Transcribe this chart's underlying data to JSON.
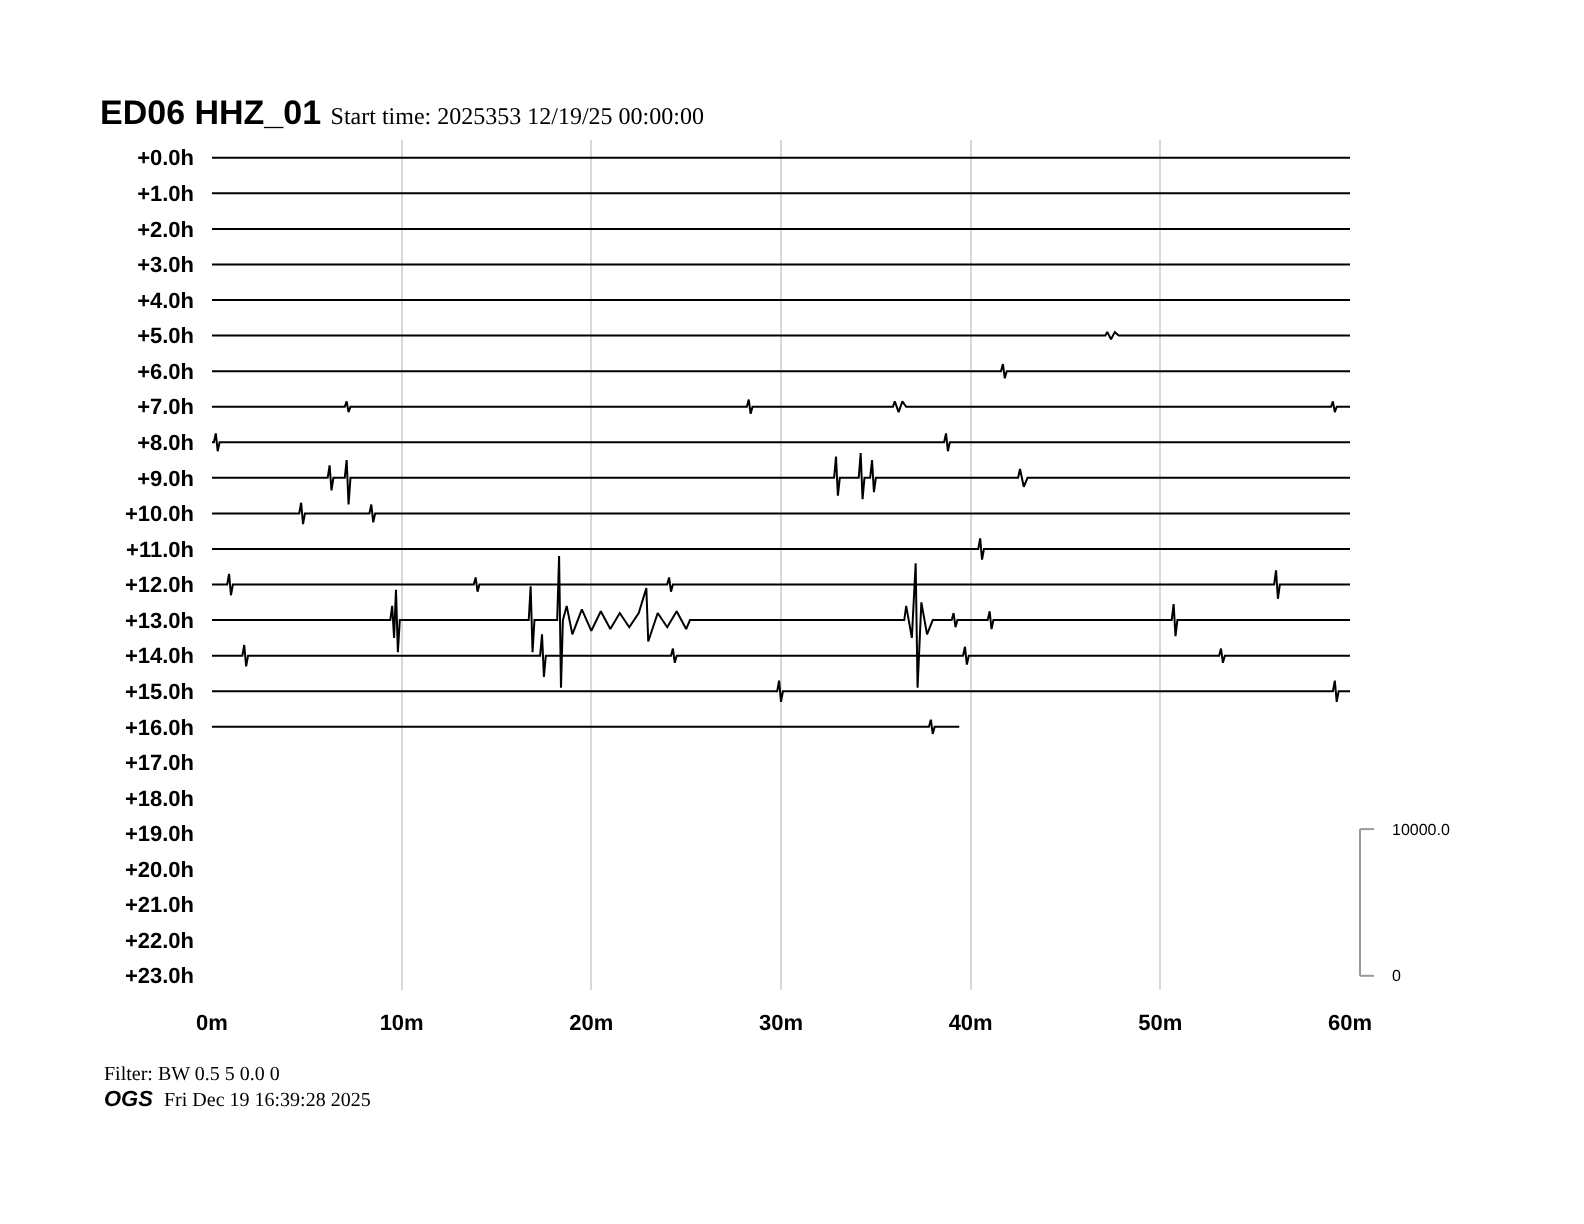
{
  "chart_data": {
    "type": "line",
    "title": "ED06 HHZ_01",
    "subtitle": "Start time: 2025353 12/19/25 00:00:00",
    "annotations": [
      "Filter: BW 0.5 5 0.0 0",
      "OGS",
      "Fri Dec 19 16:39:28 2025"
    ],
    "xlim": [
      0,
      60
    ],
    "xticks": [
      {
        "value": 0,
        "label": "0m"
      },
      {
        "value": 10,
        "label": "10m"
      },
      {
        "value": 20,
        "label": "20m"
      },
      {
        "value": 30,
        "label": "30m"
      },
      {
        "value": 40,
        "label": "40m"
      },
      {
        "value": 50,
        "label": "50m"
      },
      {
        "value": 60,
        "label": "60m"
      }
    ],
    "ylim": [
      23.4,
      -0.5
    ],
    "yticks": [
      {
        "value": 0,
        "label": "+0.0h"
      },
      {
        "value": 1,
        "label": "+1.0h"
      },
      {
        "value": 2,
        "label": "+2.0h"
      },
      {
        "value": 3,
        "label": "+3.0h"
      },
      {
        "value": 4,
        "label": "+4.0h"
      },
      {
        "value": 5,
        "label": "+5.0h"
      },
      {
        "value": 6,
        "label": "+6.0h"
      },
      {
        "value": 7,
        "label": "+7.0h"
      },
      {
        "value": 8,
        "label": "+8.0h"
      },
      {
        "value": 9,
        "label": "+9.0h"
      },
      {
        "value": 10,
        "label": "+10.0h"
      },
      {
        "value": 11,
        "label": "+11.0h"
      },
      {
        "value": 12,
        "label": "+12.0h"
      },
      {
        "value": 13,
        "label": "+13.0h"
      },
      {
        "value": 14,
        "label": "+14.0h"
      },
      {
        "value": 15,
        "label": "+15.0h"
      },
      {
        "value": 16,
        "label": "+16.0h"
      },
      {
        "value": 17,
        "label": "+17.0h"
      },
      {
        "value": 18,
        "label": "+18.0h"
      },
      {
        "value": 19,
        "label": "+19.0h"
      },
      {
        "value": 20,
        "label": "+20.0h"
      },
      {
        "value": 21,
        "label": "+21.0h"
      },
      {
        "value": 22,
        "label": "+22.0h"
      },
      {
        "value": 23,
        "label": "+23.0h"
      }
    ],
    "y2lim": [
      -970,
      56990
    ],
    "y2ticks": [
      0,
      {
        "value": 10000,
        "label": "10000.0"
      }
    ],
    "grid": "x",
    "marker": "none",
    "line_style": "solid",
    "series": [
      {
        "color": "#000000",
        "x": [
          0,
          60
        ],
        "values": [
          0,
          0
        ]
      },
      {
        "color": "#000000",
        "x": [
          0,
          60
        ],
        "values": [
          1,
          1
        ]
      },
      {
        "color": "#000000",
        "x": [
          0,
          60
        ],
        "values": [
          2,
          2
        ]
      },
      {
        "color": "#000000",
        "x": [
          0,
          60
        ],
        "values": [
          3,
          3
        ]
      },
      {
        "color": "#000000",
        "x": [
          0,
          60
        ],
        "values": [
          4,
          4
        ]
      },
      {
        "color": "#000000",
        "x": [
          0,
          47.1,
          47.2,
          47.4,
          47.6,
          47.8,
          60
        ],
        "values": [
          5,
          5,
          4.9,
          5.1,
          4.9,
          5,
          5
        ]
      },
      {
        "color": "#000000",
        "x": [
          0,
          41.6,
          41.7,
          41.8,
          41.9,
          60
        ],
        "values": [
          6,
          6,
          5.8,
          6.2,
          6,
          6
        ]
      },
      {
        "color": "#000000",
        "x": [
          0,
          7.0,
          7.1,
          7.2,
          7.3,
          28.2,
          28.3,
          28.4,
          28.5,
          35.9,
          36.0,
          36.2,
          36.4,
          36.6,
          59.0,
          59.1,
          59.2,
          59.3,
          60
        ],
        "values": [
          7,
          7,
          6.85,
          7.15,
          7,
          7,
          6.8,
          7.2,
          7,
          7,
          6.85,
          7.15,
          6.85,
          7,
          7,
          6.85,
          7.15,
          7,
          7
        ]
      },
      {
        "color": "#000000",
        "x": [
          0,
          0.1,
          0.2,
          0.3,
          0.4,
          38.6,
          38.7,
          38.8,
          38.9,
          60
        ],
        "values": [
          8,
          8,
          7.75,
          8.25,
          8,
          8,
          7.75,
          8.25,
          8,
          8
        ]
      },
      {
        "color": "#000000",
        "x": [
          0,
          6.1,
          6.2,
          6.3,
          6.4,
          7.0,
          7.1,
          7.2,
          7.3,
          32.8,
          32.9,
          33.0,
          33.1,
          34.1,
          34.2,
          34.3,
          34.4,
          34.7,
          34.8,
          34.9,
          35.0,
          42.5,
          42.6,
          42.8,
          43.0,
          60
        ],
        "values": [
          9,
          9,
          8.65,
          9.35,
          9,
          9,
          8.5,
          9.75,
          9,
          9,
          8.4,
          9.5,
          9,
          9,
          8.3,
          9.6,
          9,
          9,
          8.5,
          9.4,
          9,
          9,
          8.75,
          9.25,
          9,
          9
        ]
      },
      {
        "color": "#000000",
        "x": [
          0,
          4.6,
          4.7,
          4.8,
          4.9,
          8.3,
          8.4,
          8.5,
          8.6,
          60
        ],
        "values": [
          10,
          10,
          9.7,
          10.3,
          10,
          10,
          9.75,
          10.25,
          10,
          10
        ]
      },
      {
        "color": "#000000",
        "x": [
          0,
          40.4,
          40.5,
          40.6,
          40.7,
          60
        ],
        "values": [
          11,
          11,
          10.7,
          11.3,
          11,
          11
        ]
      },
      {
        "color": "#000000",
        "x": [
          0,
          0.8,
          0.9,
          1.0,
          1.1,
          13.8,
          13.9,
          14.0,
          14.1,
          24.0,
          24.1,
          24.2,
          24.3,
          56.0,
          56.1,
          56.2,
          56.3,
          60
        ],
        "values": [
          12,
          12,
          11.7,
          12.3,
          12,
          12,
          11.8,
          12.2,
          12,
          12,
          11.8,
          12.2,
          12,
          12,
          11.6,
          12.4,
          12,
          12
        ]
      },
      {
        "color": "#000000",
        "x": [
          0,
          9.4,
          9.5,
          9.6,
          9.7,
          9.8,
          9.9,
          16.7,
          16.8,
          16.9,
          17.0,
          18.2,
          18.3,
          18.4,
          18.5,
          18.7,
          19.0,
          19.5,
          20.0,
          20.5,
          21.0,
          21.5,
          22.0,
          22.5,
          22.9,
          23.0,
          23.5,
          24.0,
          24.5,
          25.0,
          25.2,
          36.5,
          36.6,
          36.9,
          37.1,
          37.2,
          37.4,
          37.7,
          38.0,
          39.0,
          39.1,
          39.2,
          39.3,
          40.9,
          41.0,
          41.1,
          41.2,
          50.6,
          50.7,
          50.8,
          50.9,
          60
        ],
        "values": [
          13,
          13,
          12.6,
          13.5,
          12.15,
          13.9,
          13,
          13,
          12.05,
          13.9,
          13,
          13,
          11.2,
          14.9,
          13,
          12.6,
          13.4,
          12.7,
          13.3,
          12.75,
          13.25,
          12.8,
          13.2,
          12.8,
          12.1,
          13.6,
          12.8,
          13.2,
          12.75,
          13.25,
          13,
          13,
          12.6,
          13.5,
          11.4,
          14.9,
          12.5,
          13.4,
          13,
          13,
          12.8,
          13.2,
          13,
          13,
          12.75,
          13.25,
          13,
          13,
          12.55,
          13.45,
          13,
          13
        ]
      },
      {
        "color": "#000000",
        "x": [
          0,
          1.6,
          1.7,
          1.8,
          1.9,
          17.3,
          17.4,
          17.5,
          17.6,
          24.2,
          24.3,
          24.4,
          24.5,
          39.6,
          39.7,
          39.8,
          39.9,
          53.1,
          53.2,
          53.3,
          53.4,
          60
        ],
        "values": [
          14,
          14,
          13.7,
          14.3,
          14,
          14,
          13.4,
          14.6,
          14,
          14,
          13.8,
          14.2,
          14,
          14,
          13.75,
          14.25,
          14,
          14,
          13.8,
          14.2,
          14,
          14
        ]
      },
      {
        "color": "#000000",
        "x": [
          0,
          29.8,
          29.9,
          30.0,
          30.1,
          59.1,
          59.2,
          59.3,
          59.4,
          60
        ],
        "values": [
          15,
          15,
          14.7,
          15.3,
          15,
          15,
          14.7,
          15.3,
          15,
          15
        ]
      },
      {
        "color": "#000000",
        "x": [
          0,
          37.8,
          37.9,
          38.0,
          38.1,
          39.4
        ],
        "values": [
          16,
          16,
          15.8,
          16.2,
          16,
          16
        ]
      }
    ]
  }
}
